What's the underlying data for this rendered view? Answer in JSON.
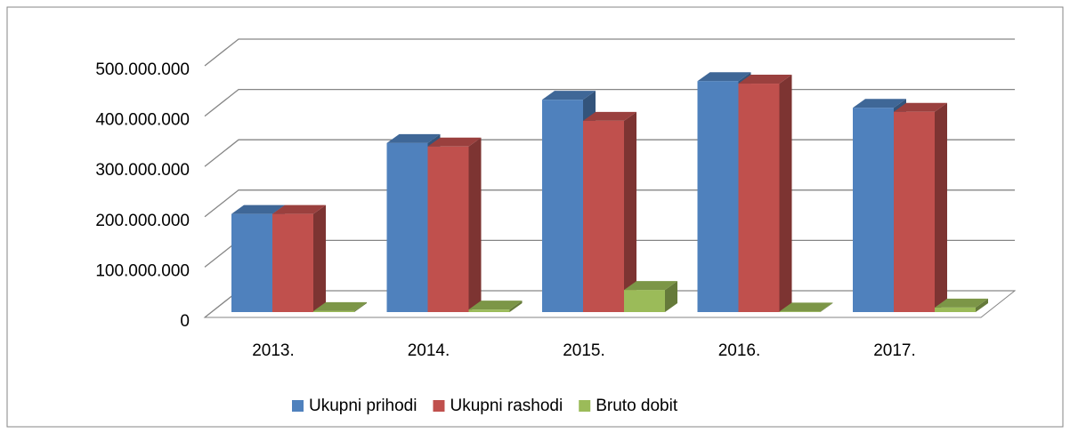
{
  "chart_data": {
    "type": "bar3d",
    "categories": [
      "2013.",
      "2014.",
      "2015.",
      "2016.",
      "2017."
    ],
    "series": [
      {
        "name": "Ukupni prihodi",
        "color": "#4f81bd",
        "values": [
          195000000,
          336000000,
          422000000,
          459000000,
          406000000
        ]
      },
      {
        "name": "Ukupni rashodi",
        "color": "#c0504d",
        "values": [
          195000000,
          329000000,
          380000000,
          454000000,
          398000000
        ]
      },
      {
        "name": "Bruto dobit",
        "color": "#9bbb59",
        "values": [
          2000000,
          5000000,
          44000000,
          1000000,
          9000000
        ]
      }
    ],
    "ylim": [
      0,
      500000000
    ],
    "yticks": [
      0,
      {
        "value": 100000000,
        "label": "100.000.000"
      },
      {
        "value": 200000000,
        "label": "200.000.000"
      },
      {
        "value": 300000000,
        "label": "300.000.000"
      },
      {
        "value": 400000000,
        "label": "400.000.000"
      },
      {
        "value": 500000000,
        "label": "500.000.000"
      }
    ],
    "grid": true,
    "legend": "bottom"
  }
}
